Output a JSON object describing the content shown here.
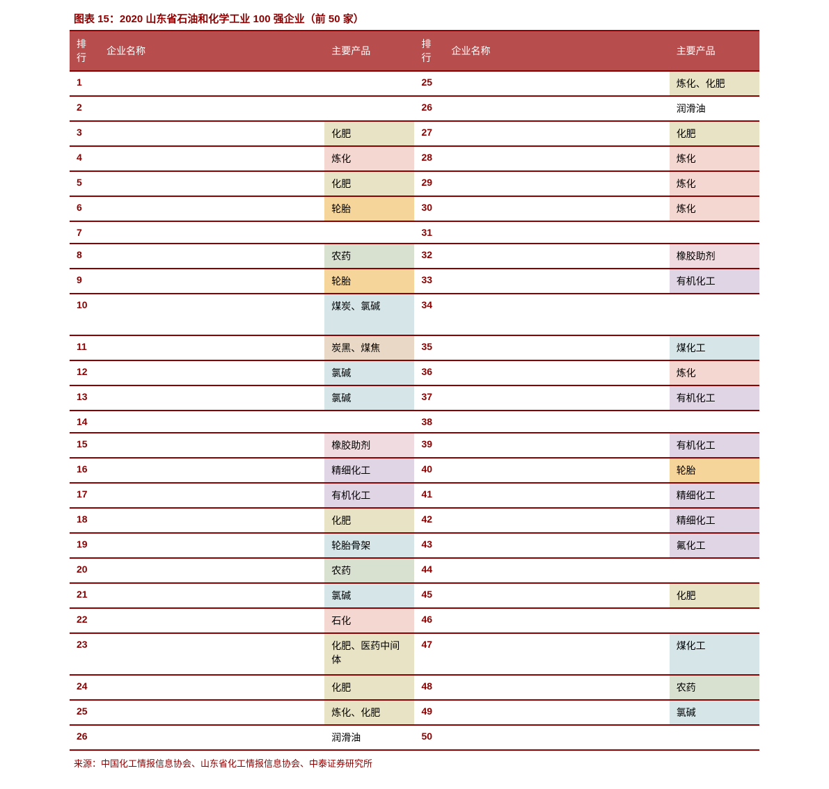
{
  "title": "图表 15：2020 山东省石油和化学工业 100 强企业（前 50 家）",
  "headers": {
    "rank": "排行",
    "company": "企业名称",
    "product": "主要产品"
  },
  "colors": {
    "refine": "#f5d7d1",
    "fertilizer": "#e8e3c4",
    "tire": "#f5d59a",
    "pesticide": "#d8e0d0",
    "coal": "#d5e5e8",
    "carbonblack": "#e8d8c5",
    "chloralkali": "#d5e5e8",
    "rubberaid": "#f0dce0",
    "finechem": "#e0d5e5",
    "organic": "#e0d5e5",
    "tireframe": "#d5e5e8",
    "petro": "#f5d7d1",
    "lube": "#ffffff",
    "fluorine": "#e0d5e5",
    "none": "#ffffff"
  },
  "left": [
    {
      "rank": "1",
      "company": "",
      "product": "",
      "bg": "none"
    },
    {
      "rank": "2",
      "company": "",
      "product": "",
      "bg": "none"
    },
    {
      "rank": "3",
      "company": "",
      "product": "化肥",
      "bg": "fertilizer"
    },
    {
      "rank": "4",
      "company": "",
      "product": "炼化",
      "bg": "refine"
    },
    {
      "rank": "5",
      "company": "",
      "product": "化肥",
      "bg": "fertilizer"
    },
    {
      "rank": "6",
      "company": "",
      "product": "轮胎",
      "bg": "tire"
    },
    {
      "rank": "7",
      "company": "",
      "product": "",
      "bg": "none"
    },
    {
      "rank": "8",
      "company": "",
      "product": "农药",
      "bg": "pesticide"
    },
    {
      "rank": "9",
      "company": "",
      "product": "轮胎",
      "bg": "tire"
    },
    {
      "rank": "10",
      "company": "",
      "product": "煤炭、氯碱",
      "bg": "coal",
      "tall": true
    },
    {
      "rank": "11",
      "company": "",
      "product": "炭黑、煤焦",
      "bg": "carbonblack"
    },
    {
      "rank": "12",
      "company": "",
      "product": "氯碱",
      "bg": "chloralkali"
    },
    {
      "rank": "13",
      "company": "",
      "product": "氯碱",
      "bg": "chloralkali"
    },
    {
      "rank": "14",
      "company": "",
      "product": "",
      "bg": "none"
    },
    {
      "rank": "15",
      "company": "",
      "product": "橡胶助剂",
      "bg": "rubberaid"
    },
    {
      "rank": "16",
      "company": "",
      "product": "精细化工",
      "bg": "finechem"
    },
    {
      "rank": "17",
      "company": "",
      "product": "有机化工",
      "bg": "organic"
    },
    {
      "rank": "18",
      "company": "",
      "product": "化肥",
      "bg": "fertilizer"
    },
    {
      "rank": "19",
      "company": "",
      "product": "轮胎骨架",
      "bg": "tireframe"
    },
    {
      "rank": "20",
      "company": "",
      "product": "农药",
      "bg": "pesticide"
    },
    {
      "rank": "21",
      "company": "",
      "product": "氯碱",
      "bg": "chloralkali"
    },
    {
      "rank": "22",
      "company": "",
      "product": "石化",
      "bg": "petro"
    },
    {
      "rank": "23",
      "company": "",
      "product": "化肥、医药中间体",
      "bg": "fertilizer",
      "tall": true
    },
    {
      "rank": "24",
      "company": "",
      "product": "化肥",
      "bg": "fertilizer"
    },
    {
      "rank": "25",
      "company": "",
      "product": "炼化、化肥",
      "bg": "fertilizer"
    },
    {
      "rank": "26",
      "company": "",
      "product": "润滑油",
      "bg": "lube"
    }
  ],
  "right": [
    {
      "rank": "25",
      "company": "",
      "product": "炼化、化肥",
      "bg": "fertilizer"
    },
    {
      "rank": "26",
      "company": "",
      "product": "润滑油",
      "bg": "lube"
    },
    {
      "rank": "27",
      "company": "",
      "product": "化肥",
      "bg": "fertilizer"
    },
    {
      "rank": "28",
      "company": "",
      "product": "炼化",
      "bg": "refine"
    },
    {
      "rank": "29",
      "company": "",
      "product": "炼化",
      "bg": "refine"
    },
    {
      "rank": "30",
      "company": "",
      "product": "炼化",
      "bg": "refine"
    },
    {
      "rank": "31",
      "company": "",
      "product": "",
      "bg": "none"
    },
    {
      "rank": "32",
      "company": "",
      "product": "橡胶助剂",
      "bg": "rubberaid"
    },
    {
      "rank": "33",
      "company": "",
      "product": "有机化工",
      "bg": "organic"
    },
    {
      "rank": "34",
      "company": "",
      "product": "",
      "bg": "none",
      "tall": true
    },
    {
      "rank": "35",
      "company": "",
      "product": "煤化工",
      "bg": "coal"
    },
    {
      "rank": "36",
      "company": "",
      "product": "炼化",
      "bg": "refine"
    },
    {
      "rank": "37",
      "company": "",
      "product": "有机化工",
      "bg": "organic"
    },
    {
      "rank": "38",
      "company": "",
      "product": "",
      "bg": "none"
    },
    {
      "rank": "39",
      "company": "",
      "product": "有机化工",
      "bg": "organic"
    },
    {
      "rank": "40",
      "company": "",
      "product": "轮胎",
      "bg": "tire"
    },
    {
      "rank": "41",
      "company": "",
      "product": "精细化工",
      "bg": "finechem"
    },
    {
      "rank": "42",
      "company": "",
      "product": "精细化工",
      "bg": "finechem"
    },
    {
      "rank": "43",
      "company": "",
      "product": "氟化工",
      "bg": "fluorine"
    },
    {
      "rank": "44",
      "company": "",
      "product": "",
      "bg": "none"
    },
    {
      "rank": "45",
      "company": "",
      "product": "化肥",
      "bg": "fertilizer"
    },
    {
      "rank": "46",
      "company": "",
      "product": "",
      "bg": "none"
    },
    {
      "rank": "47",
      "company": "",
      "product": "煤化工",
      "bg": "coal",
      "tall": true
    },
    {
      "rank": "48",
      "company": "",
      "product": "农药",
      "bg": "pesticide"
    },
    {
      "rank": "49",
      "company": "",
      "product": "氯碱",
      "bg": "chloralkali"
    },
    {
      "rank": "50",
      "company": "",
      "product": "",
      "bg": "none"
    }
  ],
  "source": "来源：中国化工情报信息协会、山东省化工情报信息协会、中泰证券研究所"
}
